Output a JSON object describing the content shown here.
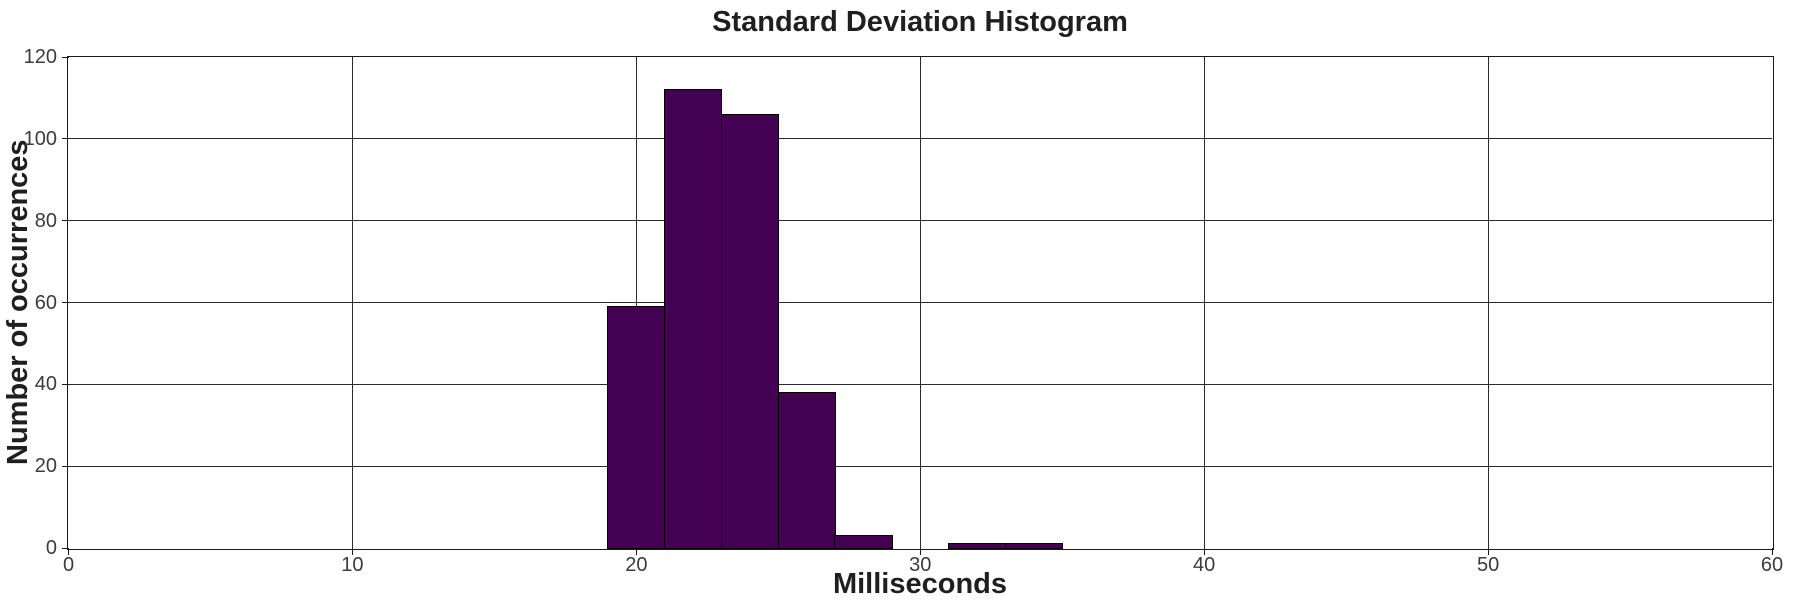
{
  "figure": {
    "background": "#ffffff"
  },
  "chart_data": {
    "type": "bar",
    "subtype": "histogram",
    "title": "Standard Deviation Histogram",
    "xlabel": "Milliseconds",
    "ylabel": "Number of occurrences",
    "xlim": [
      0,
      60
    ],
    "ylim": [
      0,
      120
    ],
    "x_ticks": [
      0,
      10,
      20,
      30,
      40,
      50,
      60
    ],
    "y_ticks": [
      0,
      20,
      40,
      60,
      80,
      100,
      120
    ],
    "grid": true,
    "legend": null,
    "bin_width_ms": 2,
    "bins": [
      {
        "start": 19,
        "end": 21,
        "count": 59
      },
      {
        "start": 21,
        "end": 23,
        "count": 112
      },
      {
        "start": 23,
        "end": 25,
        "count": 106
      },
      {
        "start": 25,
        "end": 27,
        "count": 38
      },
      {
        "start": 27,
        "end": 29,
        "count": 3
      },
      {
        "start": 29,
        "end": 31,
        "count": 0
      },
      {
        "start": 31,
        "end": 33,
        "count": 1
      },
      {
        "start": 33,
        "end": 35,
        "count": 1
      }
    ],
    "colors": {
      "bar_fill": "#440154",
      "bar_edge": "#000000",
      "grid_line": "#2b2b2b",
      "axis_border": "#1a1a1a",
      "tick_label": "#3c3c3c",
      "text": "#1f1f1f",
      "background": "#ffffff"
    }
  }
}
